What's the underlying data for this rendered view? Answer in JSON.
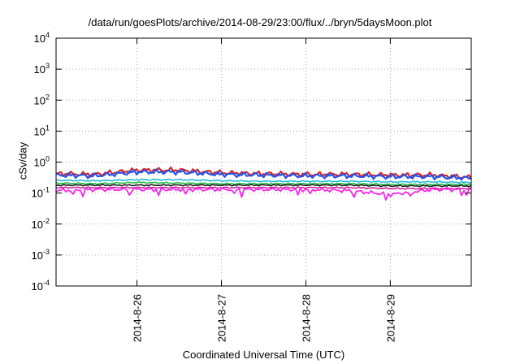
{
  "chart_data": {
    "type": "line",
    "title": "/data/run/goesPlots/archive/2014-08-29/23:00/flux/../bryn/5daysMoon.plot",
    "xlabel": "Coordinated Universal Time (UTC)",
    "ylabel": "cSv/day",
    "y_scale": "log",
    "ylim": [
      0.0001,
      10000
    ],
    "xlim": [
      "2014-08-25 01:00",
      "2014-08-29 23:00"
    ],
    "grid": true,
    "x_ticks": [
      "2014-8-26",
      "2014-8-27",
      "2014-8-28",
      "2014-8-29"
    ],
    "y_ticks": [
      {
        "base": "10",
        "exp": "4"
      },
      {
        "base": "10",
        "exp": "3"
      },
      {
        "base": "10",
        "exp": "2"
      },
      {
        "base": "10",
        "exp": "1"
      },
      {
        "base": "10",
        "exp": "0"
      },
      {
        "base": "10",
        "exp": "-1"
      },
      {
        "base": "10",
        "exp": "-2"
      },
      {
        "base": "10",
        "exp": "-3"
      },
      {
        "base": "10",
        "exp": "-4"
      }
    ],
    "series": [
      {
        "color": "#dd2222",
        "x": [
          "2014-08-25 01:00",
          "2014-08-25 12:00",
          "2014-08-26 00:00",
          "2014-08-26 12:00",
          "2014-08-27 00:00",
          "2014-08-27 12:00",
          "2014-08-28 00:00",
          "2014-08-28 12:00",
          "2014-08-29 00:00",
          "2014-08-29 12:00",
          "2014-08-29 23:00"
        ],
        "values": [
          0.42,
          0.4,
          0.55,
          0.55,
          0.45,
          0.42,
          0.4,
          0.4,
          0.38,
          0.38,
          0.32
        ]
      },
      {
        "color": "#2255ee",
        "x": [
          "2014-08-25 01:00",
          "2014-08-25 12:00",
          "2014-08-26 00:00",
          "2014-08-26 12:00",
          "2014-08-27 00:00",
          "2014-08-27 12:00",
          "2014-08-28 00:00",
          "2014-08-28 12:00",
          "2014-08-29 00:00",
          "2014-08-29 12:00",
          "2014-08-29 23:00"
        ],
        "values": [
          0.38,
          0.36,
          0.48,
          0.48,
          0.4,
          0.38,
          0.36,
          0.36,
          0.34,
          0.34,
          0.3
        ]
      },
      {
        "color": "#22bbdd",
        "x": [
          "2014-08-25 01:00",
          "2014-08-25 12:00",
          "2014-08-26 00:00",
          "2014-08-26 12:00",
          "2014-08-27 00:00",
          "2014-08-27 12:00",
          "2014-08-28 00:00",
          "2014-08-28 12:00",
          "2014-08-29 00:00",
          "2014-08-29 12:00",
          "2014-08-29 23:00"
        ],
        "values": [
          0.26,
          0.25,
          0.27,
          0.27,
          0.25,
          0.24,
          0.24,
          0.24,
          0.23,
          0.23,
          0.22
        ]
      },
      {
        "color": "#22bb44",
        "x": [
          "2014-08-25 01:00",
          "2014-08-25 12:00",
          "2014-08-26 00:00",
          "2014-08-26 12:00",
          "2014-08-27 00:00",
          "2014-08-27 12:00",
          "2014-08-28 00:00",
          "2014-08-28 12:00",
          "2014-08-29 00:00",
          "2014-08-29 12:00",
          "2014-08-29 23:00"
        ],
        "values": [
          0.21,
          0.2,
          0.22,
          0.21,
          0.2,
          0.2,
          0.2,
          0.2,
          0.19,
          0.19,
          0.19
        ]
      },
      {
        "color": "#222222",
        "x": [
          "2014-08-25 01:00",
          "2014-08-25 12:00",
          "2014-08-26 00:00",
          "2014-08-26 12:00",
          "2014-08-27 00:00",
          "2014-08-27 12:00",
          "2014-08-28 00:00",
          "2014-08-28 12:00",
          "2014-08-29 00:00",
          "2014-08-29 12:00",
          "2014-08-29 23:00"
        ],
        "values": [
          0.18,
          0.18,
          0.18,
          0.18,
          0.18,
          0.18,
          0.18,
          0.18,
          0.17,
          0.17,
          0.17
        ]
      },
      {
        "color": "#cc2299",
        "x": [
          "2014-08-25 01:00",
          "2014-08-25 12:00",
          "2014-08-26 00:00",
          "2014-08-26 12:00",
          "2014-08-27 00:00",
          "2014-08-27 12:00",
          "2014-08-28 00:00",
          "2014-08-28 12:00",
          "2014-08-29 00:00",
          "2014-08-29 12:00",
          "2014-08-29 23:00"
        ],
        "values": [
          0.15,
          0.15,
          0.15,
          0.15,
          0.15,
          0.15,
          0.15,
          0.15,
          0.14,
          0.14,
          0.14
        ]
      },
      {
        "color": "#ff11ee",
        "x": [
          "2014-08-25 01:00",
          "2014-08-25 12:00",
          "2014-08-26 00:00",
          "2014-08-26 12:00",
          "2014-08-27 00:00",
          "2014-08-27 12:00",
          "2014-08-28 00:00",
          "2014-08-28 12:00",
          "2014-08-29 00:00",
          "2014-08-29 12:00",
          "2014-08-29 23:00"
        ],
        "values": [
          0.12,
          0.13,
          0.13,
          0.13,
          0.13,
          0.13,
          0.13,
          0.12,
          0.09,
          0.13,
          0.13
        ]
      }
    ]
  }
}
